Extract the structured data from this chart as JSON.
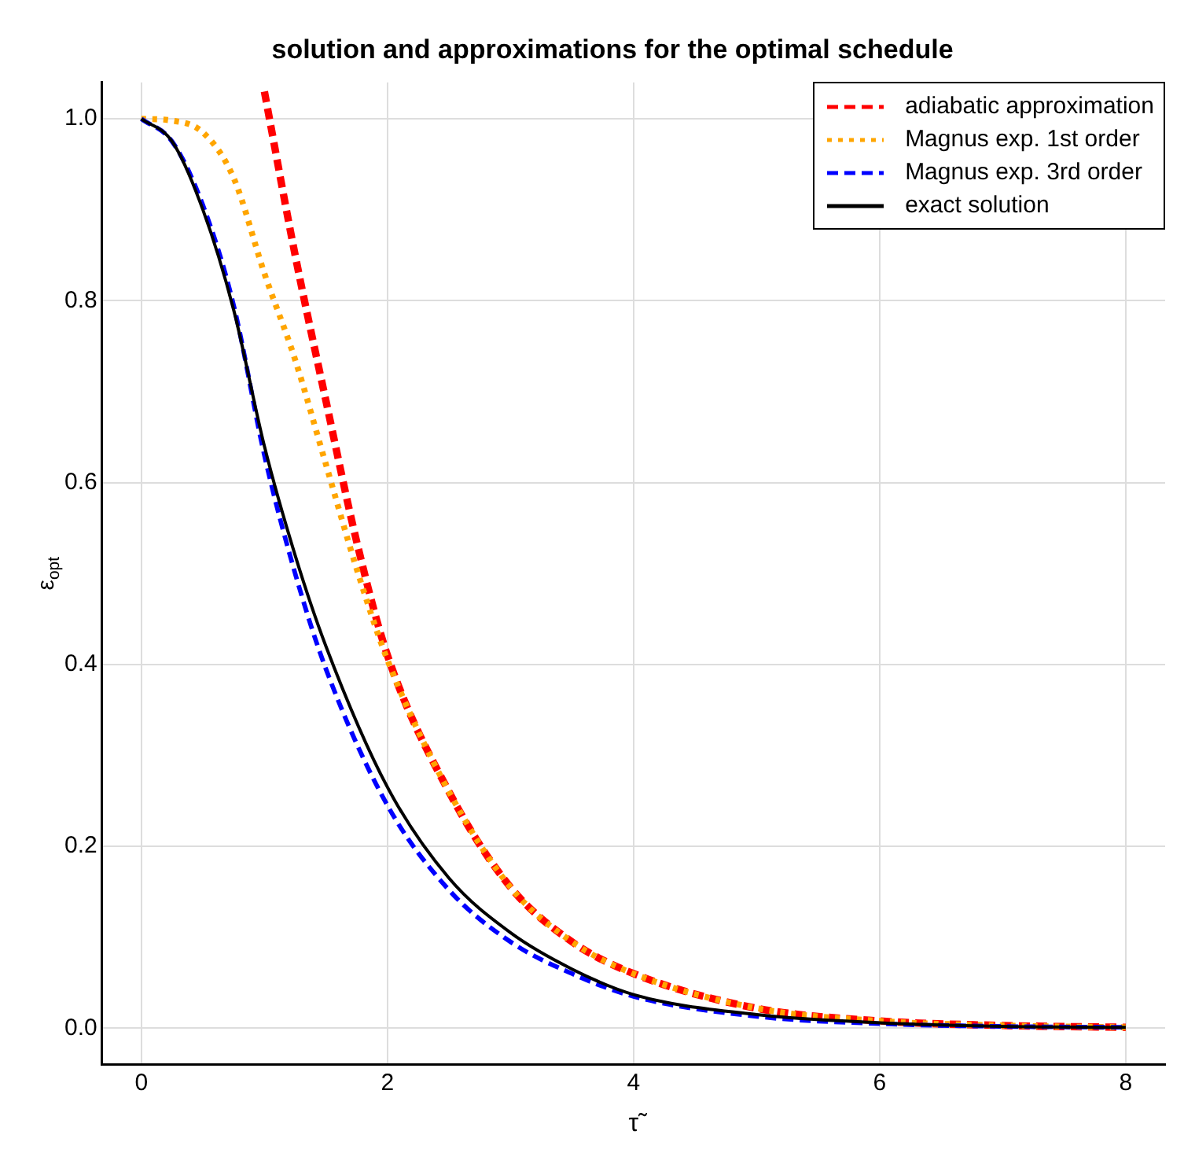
{
  "chart_data": {
    "type": "line",
    "title": "solution and approximations for the optimal schedule",
    "xlabel": "τ̃",
    "ylabel": "ε$_{opt}$",
    "xlim": [
      -0.32,
      8.32
    ],
    "xticks": [
      0,
      2,
      4,
      6,
      8
    ],
    "ylim": [
      -0.04,
      1.04
    ],
    "yticks": [
      {
        "value": 0,
        "label": "0.0"
      },
      {
        "value": 0.2,
        "label": "0.2"
      },
      {
        "value": 0.4,
        "label": "0.4"
      },
      {
        "value": 0.6,
        "label": "0.6"
      },
      {
        "value": 0.8,
        "label": "0.8"
      },
      {
        "value": 1,
        "label": "1.0"
      }
    ],
    "grid": true,
    "legend": "top right",
    "marker": "none",
    "series": [
      {
        "name": "adiabatic approximation",
        "color": "#ff0000",
        "line_style": "dashed",
        "x": [
          1,
          1.25,
          1.5,
          1.75,
          2,
          2.5,
          3,
          3.5,
          4,
          5,
          6,
          7,
          8
        ],
        "values": [
          1.03,
          0.85,
          0.69,
          0.535,
          0.41,
          0.26,
          0.155,
          0.095,
          0.06,
          0.022,
          0.008,
          0.003,
          0.001
        ]
      },
      {
        "name": "Magnus exp. 1st order",
        "color": "#ffa500",
        "line_style": "dotted",
        "x": [
          0,
          0.25,
          0.5,
          0.75,
          1,
          1.25,
          1.5,
          1.75,
          2,
          2.5,
          3,
          3.5,
          4,
          5,
          6,
          7,
          8
        ],
        "values": [
          1,
          0.998,
          0.985,
          0.935,
          0.83,
          0.735,
          0.62,
          0.505,
          0.405,
          0.26,
          0.155,
          0.095,
          0.06,
          0.022,
          0.008,
          0.003,
          0.001
        ]
      },
      {
        "name": "Magnus exp. 3rd order",
        "color": "#0000ff",
        "line_style": "dashed",
        "x": [
          0,
          0.25,
          0.5,
          0.75,
          1,
          1.25,
          1.5,
          2,
          2.5,
          3,
          3.5,
          4,
          5,
          6,
          7,
          8
        ],
        "values": [
          1,
          0.975,
          0.905,
          0.795,
          0.63,
          0.5,
          0.395,
          0.245,
          0.152,
          0.095,
          0.06,
          0.035,
          0.013,
          0.005,
          0.002,
          0.001
        ]
      },
      {
        "name": "exact solution",
        "color": "#000000",
        "line_style": "solid",
        "x": [
          0,
          0.25,
          0.5,
          0.75,
          1,
          1.25,
          1.5,
          2,
          2.5,
          3,
          3.5,
          4,
          5,
          6,
          7,
          8
        ],
        "values": [
          1,
          0.975,
          0.9,
          0.79,
          0.64,
          0.52,
          0.42,
          0.265,
          0.165,
          0.105,
          0.065,
          0.037,
          0.015,
          0.006,
          0.002,
          0.001
        ]
      }
    ]
  }
}
